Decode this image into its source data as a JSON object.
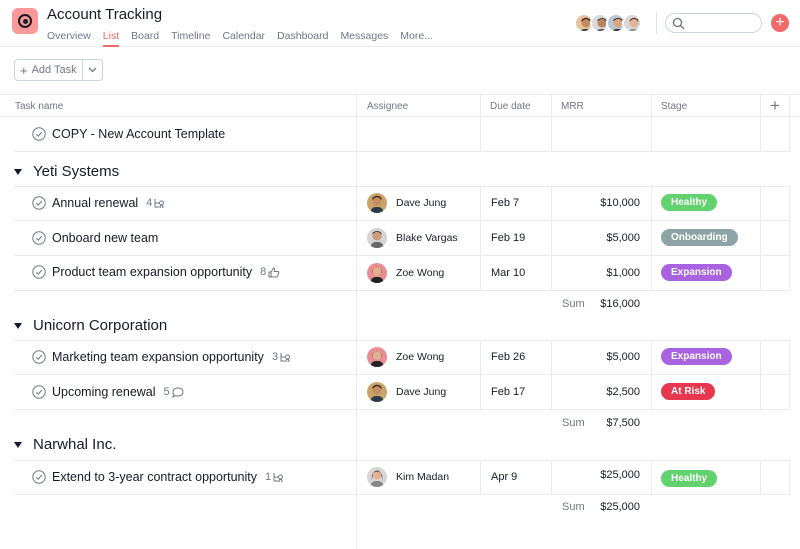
{
  "header": {
    "title": "Account Tracking",
    "tabs": [
      "Overview",
      "List",
      "Board",
      "Timeline",
      "Calendar",
      "Dashboard",
      "Messages",
      "More..."
    ],
    "active_tab": "List",
    "accent": "#f06a6a"
  },
  "toolbar": {
    "add_task_label": "Add Task"
  },
  "columns": {
    "task": "Task name",
    "assignee": "Assignee",
    "due": "Due date",
    "mrr": "MRR",
    "stage": "Stage"
  },
  "template_task": {
    "name": "COPY - New Account Template"
  },
  "sections": [
    {
      "name": "Yeti Systems",
      "tasks": [
        {
          "name": "Annual renewal",
          "meta_count": "4",
          "meta_icon": "subtask-icon",
          "assignee": "Dave Jung",
          "due": "Feb 7",
          "mrr": "$10,000",
          "stage": "Healthy",
          "stage_color": "#62d26f"
        },
        {
          "name": "Onboard new team",
          "meta_count": "",
          "meta_icon": "",
          "assignee": "Blake Vargas",
          "due": "Feb 19",
          "mrr": "$5,000",
          "stage": "Onboarding",
          "stage_color": "#8da3a6"
        },
        {
          "name": "Product team expansion opportunity",
          "meta_count": "8",
          "meta_icon": "like-icon",
          "assignee": "Zoe Wong",
          "due": "Mar 10",
          "mrr": "$1,000",
          "stage": "Expansion",
          "stage_color": "#a962e0"
        }
      ],
      "sum_label": "Sum",
      "sum": "$16,000"
    },
    {
      "name": "Unicorn Corporation",
      "tasks": [
        {
          "name": "Marketing team expansion opportunity",
          "meta_count": "3",
          "meta_icon": "subtask-icon",
          "assignee": "Zoe Wong",
          "due": "Feb 26",
          "mrr": "$5,000",
          "stage": "Expansion",
          "stage_color": "#a962e0"
        },
        {
          "name": "Upcoming renewal",
          "meta_count": "5",
          "meta_icon": "comment-icon",
          "assignee": "Dave Jung",
          "due": "Feb 17",
          "mrr": "$2,500",
          "stage": "At Risk",
          "stage_color": "#e8384f"
        }
      ],
      "sum_label": "Sum",
      "sum": "$7,500"
    },
    {
      "name": "Narwhal Inc.",
      "tasks": [
        {
          "name": "Extend to 3-year contract opportunity",
          "meta_count": "1",
          "meta_icon": "subtask-icon",
          "assignee": "Kim Madan",
          "due": "Apr 9",
          "mrr": "$25,000",
          "stage": "Healthy",
          "stage_color": "#62d26f"
        }
      ],
      "sum_label": "Sum",
      "sum": "$25,000"
    }
  ]
}
